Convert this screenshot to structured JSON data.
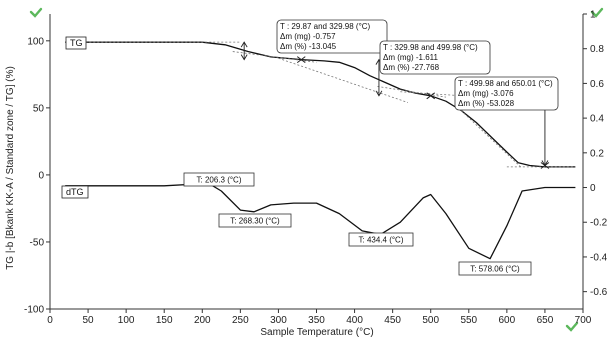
{
  "chart_data": {
    "type": "line",
    "xlabel": "Sample Temperature (°C)",
    "ylabel_left": "TG |-b [Bkank KK-A / Standard zone / TG] (%)",
    "ylabel_right": "",
    "xlim": [
      0,
      700
    ],
    "ylim_left": [
      -100,
      120
    ],
    "ylim_right": [
      -0.7,
      1.0
    ],
    "x_ticks": [
      "0",
      "50",
      "100",
      "150",
      "200",
      "250",
      "300",
      "350",
      "400",
      "450",
      "500",
      "550",
      "600",
      "650",
      "700"
    ],
    "y_left_ticks": [
      "-100",
      "-50",
      "0",
      "50",
      "100"
    ],
    "y_right_ticks": [
      "1",
      "0.8",
      "0.6",
      "0.4",
      "0.2",
      "0",
      "-0.2",
      "-0.4",
      "-0.6"
    ],
    "series": [
      {
        "name": "TG",
        "axis": "left",
        "x": [
          20,
          100,
          200,
          230,
          260,
          290,
          330,
          360,
          380,
          400,
          420,
          440,
          460,
          480,
          500,
          520,
          540,
          560,
          580,
          600,
          615,
          630,
          650,
          670,
          690
        ],
        "y": [
          99,
          99,
          99,
          97,
          92,
          88,
          86,
          85,
          84,
          80,
          74,
          69,
          64,
          61,
          59,
          55,
          48,
          39,
          28,
          17,
          9,
          7,
          6,
          6,
          6
        ]
      },
      {
        "name": "dTG",
        "axis": "right",
        "x": [
          20,
          150,
          190,
          206,
          225,
          250,
          268,
          290,
          320,
          350,
          380,
          410,
          434,
          460,
          490,
          500,
          520,
          550,
          578,
          600,
          620,
          650,
          690
        ],
        "y": [
          0.01,
          0.01,
          0.02,
          0.03,
          -0.02,
          -0.13,
          -0.14,
          -0.1,
          -0.09,
          -0.09,
          -0.15,
          -0.25,
          -0.27,
          -0.2,
          -0.06,
          -0.04,
          -0.15,
          -0.35,
          -0.41,
          -0.22,
          -0.02,
          0.0,
          0.0
        ]
      }
    ],
    "series_labels": [
      {
        "text": "TG",
        "series": 0
      },
      {
        "text": "dTG",
        "series": 1
      }
    ],
    "annotations": [
      {
        "lines": [
          "T : 29.87 and 329.98 (°C)",
          "Δm (mg) -0.757",
          "Δm (%) -13.045"
        ]
      },
      {
        "lines": [
          "T : 329.98 and 499.98 (°C)",
          "Δm (mg) -1.611",
          "Δm (%) -27.768"
        ]
      },
      {
        "lines": [
          "T : 499.98 and 650.01 (°C)",
          "Δm (mg) -3.076",
          "Δm (%) -53.028"
        ]
      }
    ],
    "peak_labels": [
      {
        "text": "T: 206.3 (°C)",
        "x": 206.3
      },
      {
        "text": "T: 268.30 (°C)",
        "x": 268.3
      },
      {
        "text": "T: 434.4 (°C)",
        "x": 434.4
      },
      {
        "text": "T: 578.06 (°C)",
        "x": 578.06
      }
    ],
    "markers": [
      {
        "x": 330,
        "y": 86
      },
      {
        "x": 500,
        "y": 59
      },
      {
        "x": 650,
        "y": 7
      }
    ],
    "grid": false,
    "colors": {
      "axis": "#333333",
      "tg": "#111111",
      "dtg": "#111111",
      "tangent": "#777777",
      "marker_green": "#5cb85c"
    }
  }
}
